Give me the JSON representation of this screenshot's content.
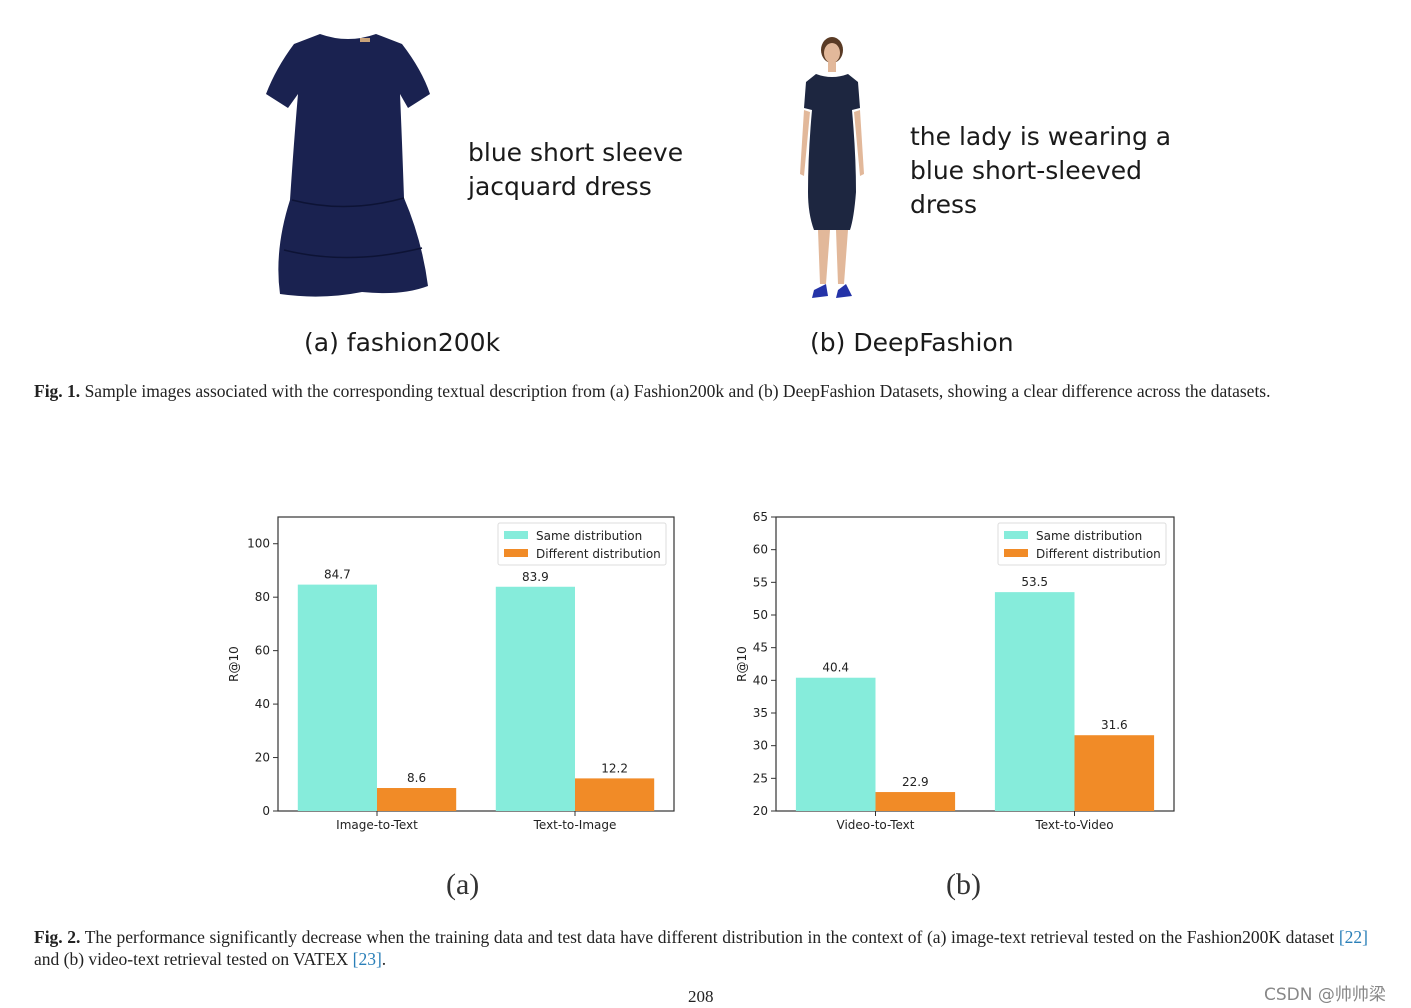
{
  "figure1": {
    "panel_a": {
      "description": "blue short sleeve\njacquard dress",
      "label": "(a) fashion200k"
    },
    "panel_b": {
      "description": "the lady is wearing a\nblue short-sleeved\ndress",
      "label": "(b) DeepFashion"
    },
    "caption_label": "Fig. 1.",
    "caption_text": "Sample images associated with the corresponding textual description from (a) Fashion200k and (b) DeepFashion Datasets, showing a clear difference across the datasets."
  },
  "colors": {
    "same": "#86ecdb",
    "different": "#f18b27",
    "dress": "#1a2250"
  },
  "chart_data": [
    {
      "type": "bar",
      "categories": [
        "Image-to-Text",
        "Text-to-Image"
      ],
      "series": [
        {
          "name": "Same distribution",
          "values": [
            84.7,
            83.9
          ]
        },
        {
          "name": "Different distribution",
          "values": [
            8.6,
            12.2
          ]
        }
      ],
      "ylabel": "R@10",
      "ylim": [
        0,
        110
      ],
      "yticks": [
        0,
        20,
        40,
        60,
        80,
        100
      ],
      "legend": "top-right",
      "grid": false,
      "panel_label": "(a)"
    },
    {
      "type": "bar",
      "categories": [
        "Video-to-Text",
        "Text-to-Video"
      ],
      "series": [
        {
          "name": "Same distribution",
          "values": [
            40.4,
            53.5
          ]
        },
        {
          "name": "Different distribution",
          "values": [
            22.9,
            31.6
          ]
        }
      ],
      "ylabel": "R@10",
      "ylim": [
        20,
        65
      ],
      "yticks": [
        20,
        25,
        30,
        35,
        40,
        45,
        50,
        55,
        60,
        65
      ],
      "legend": "top-right",
      "grid": false,
      "panel_label": "(b)"
    }
  ],
  "figure2": {
    "caption_label": "Fig. 2.",
    "caption_pre": "The performance significantly decrease when the training data and test data have different distribution in the context of (a) image-text retrieval tested on the Fashion200K dataset ",
    "ref1": "[22]",
    "caption_mid": " and (b) video-text retrieval tested on VATEX ",
    "ref2": "[23]",
    "caption_end": "."
  },
  "page_number": "208",
  "watermark": "CSDN @帅帅梁"
}
